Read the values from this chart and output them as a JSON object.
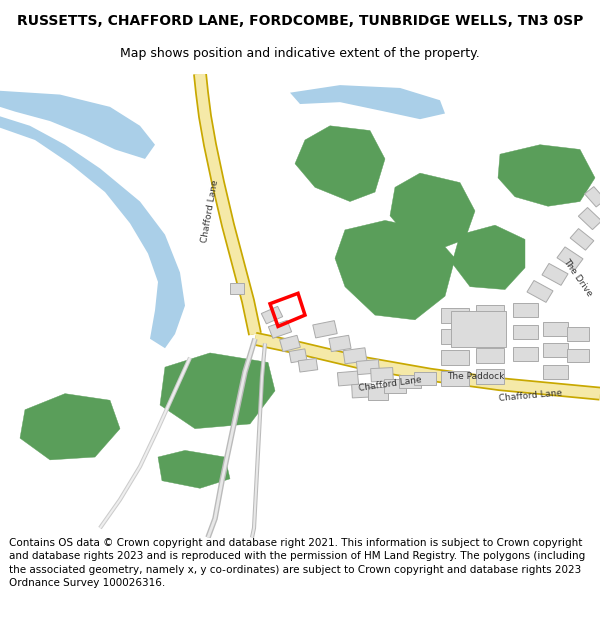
{
  "title": "RUSSETTS, CHAFFORD LANE, FORDCOMBE, TUNBRIDGE WELLS, TN3 0SP",
  "subtitle": "Map shows position and indicative extent of the property.",
  "footer": "Contains OS data © Crown copyright and database right 2021. This information is subject to Crown copyright and database rights 2023 and is reproduced with the permission of HM Land Registry. The polygons (including the associated geometry, namely x, y co-ordinates) are subject to Crown copyright and database rights 2023 Ordnance Survey 100026316.",
  "bg_color": "#ffffff",
  "map_bg": "#ffffff",
  "road_color": "#f5e9a8",
  "road_edge_color": "#c8a800",
  "river_color": "#aacfe8",
  "river_edge": "#88b8d8",
  "green_color": "#5a9e5a",
  "building_color": "#dcdcdc",
  "building_edge": "#aaaaaa",
  "highlight_color": "#ff0000",
  "path_color": "#cccccc",
  "title_fontsize": 10,
  "subtitle_fontsize": 9,
  "footer_fontsize": 7.5
}
